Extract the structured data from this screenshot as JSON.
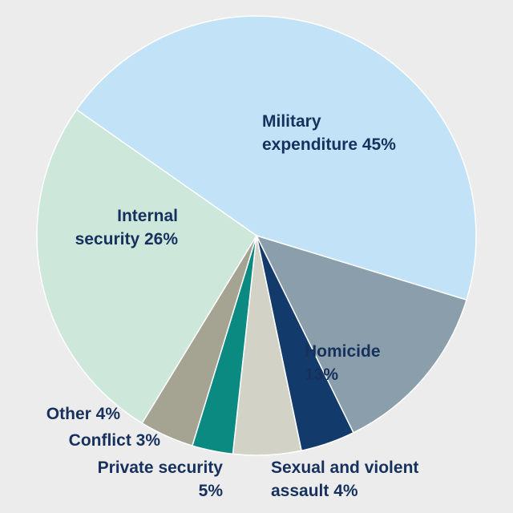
{
  "chart_data": {
    "type": "pie",
    "slices": [
      {
        "label_lines": [
          "Military",
          "expenditure 45%"
        ],
        "value": 45,
        "color": "#c2e3f7",
        "text_color": "#16315d"
      },
      {
        "label_lines": [
          "Homicide",
          "13%"
        ],
        "value": 13,
        "color": "#8a9eab",
        "text_color": "#16315d"
      },
      {
        "label_lines": [
          "Sexual and violent",
          "assault 4%"
        ],
        "value": 4,
        "color": "#123a6b",
        "text_color": "#16315d"
      },
      {
        "label_lines": [
          "Private security",
          "5%"
        ],
        "value": 5,
        "color": "#d3d2c7",
        "text_color": "#16315d"
      },
      {
        "label_lines": [
          "Conflict 3%"
        ],
        "value": 3,
        "color": "#0a8a80",
        "text_color": "#16315d"
      },
      {
        "label_lines": [
          "Other 4%"
        ],
        "value": 4,
        "color": "#a5a392",
        "text_color": "#16315d"
      },
      {
        "label_lines": [
          "Internal",
          "security 26%"
        ],
        "value": 26,
        "color": "#cde7da",
        "text_color": "#16315d"
      }
    ]
  }
}
